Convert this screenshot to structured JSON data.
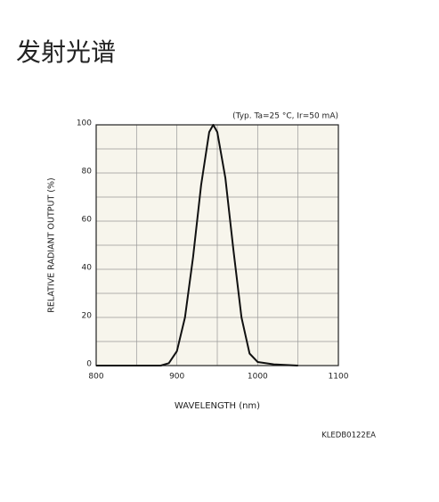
{
  "header": {
    "title": "发射光谱"
  },
  "chart_data": {
    "type": "line",
    "annotation": "(Typ. Ta=25 °C, Ir=50 mA)",
    "x_label": "WAVELENGTH (nm)",
    "y_label": "RELATIVE RADIANT OUTPUT (%)",
    "x": [
      800,
      880,
      890,
      900,
      910,
      920,
      930,
      940,
      945,
      950,
      960,
      970,
      980,
      990,
      1000,
      1020,
      1050
    ],
    "values": [
      0,
      0,
      1,
      6,
      20,
      45,
      75,
      97,
      100,
      97,
      78,
      48,
      20,
      5,
      1.5,
      0.5,
      0
    ],
    "color": "#111111",
    "xlim": [
      800,
      1100
    ],
    "ylim": [
      0,
      100
    ],
    "xticks": [
      800,
      900,
      1000,
      1100
    ],
    "yticks": [
      0,
      20,
      40,
      60,
      80,
      100
    ],
    "minor_xticks": [
      850,
      950,
      1050
    ],
    "minor_yticks": [
      10,
      30,
      50,
      70,
      90
    ],
    "grid": true
  },
  "footer": {
    "code": "KLEDB0122EA"
  }
}
